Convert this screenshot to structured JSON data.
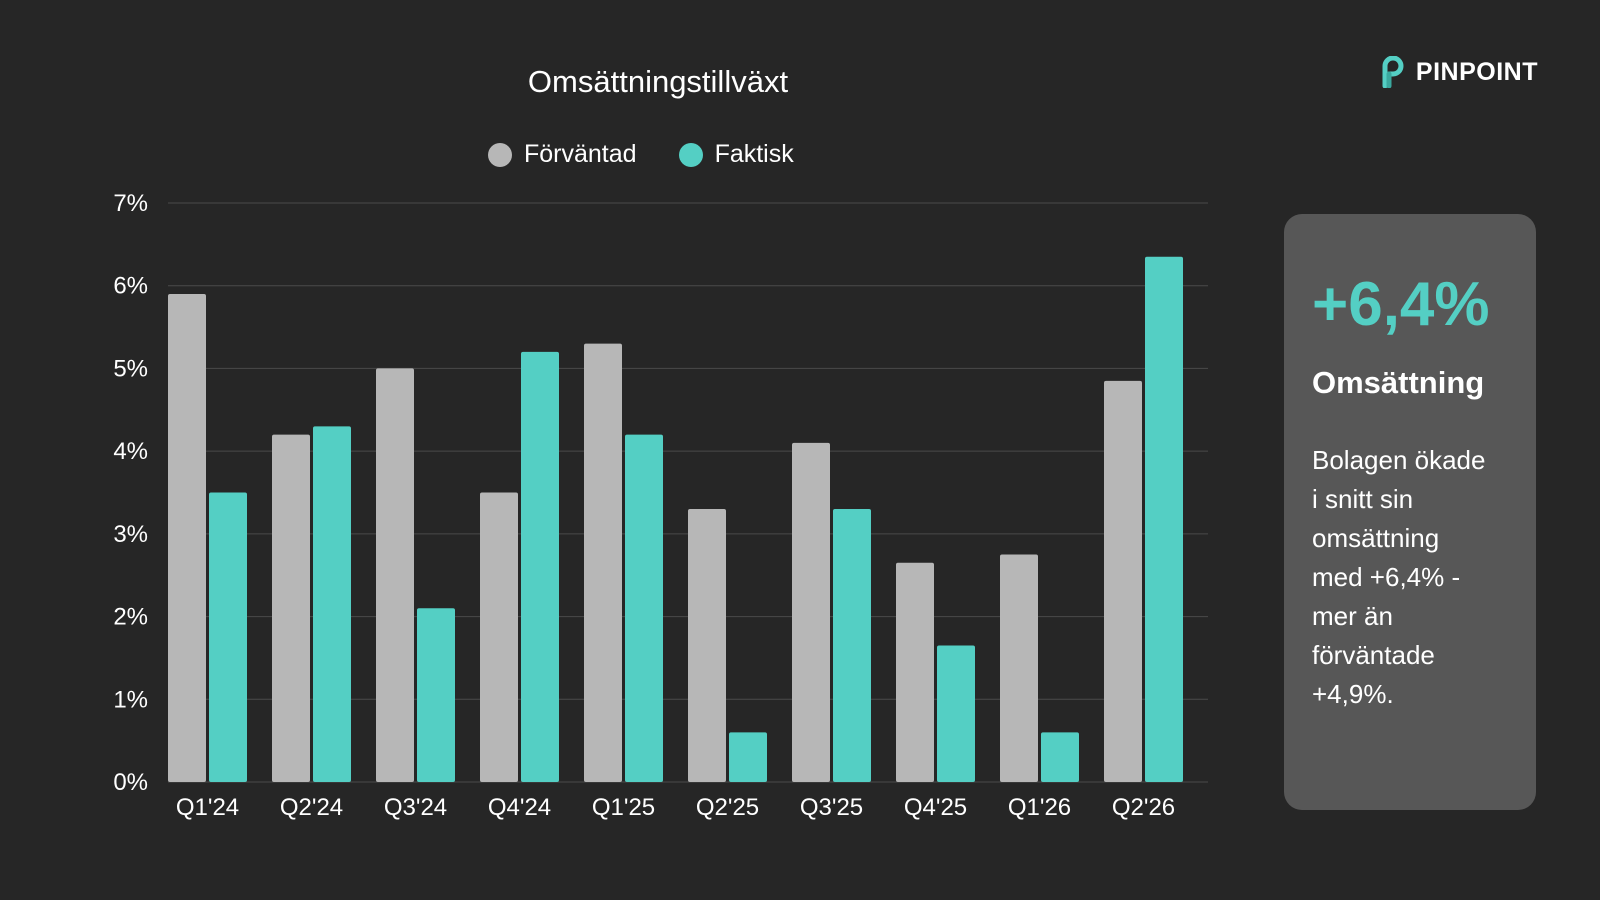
{
  "brand": {
    "name": "PINPOINT",
    "logo_icon": "pinpoint-logo-icon",
    "accent": "#54cfc4"
  },
  "chart_data": {
    "type": "bar",
    "title": "Omsättningstillväxt",
    "xlabel": "",
    "ylabel": "",
    "categories": [
      "Q1'24",
      "Q2'24",
      "Q3'24",
      "Q4'24",
      "Q1'25",
      "Q2'25",
      "Q3'25",
      "Q4'25",
      "Q1'26",
      "Q2'26"
    ],
    "series": [
      {
        "name": "Förväntad",
        "color": "#b7b7b7",
        "values": [
          5.9,
          4.2,
          5.0,
          3.5,
          5.3,
          3.3,
          4.1,
          2.65,
          2.75,
          4.85
        ]
      },
      {
        "name": "Faktisk",
        "color": "#54cfc4",
        "values": [
          3.5,
          4.3,
          2.1,
          5.2,
          4.2,
          0.6,
          3.3,
          1.65,
          0.6,
          6.35
        ]
      }
    ],
    "ylim": [
      0,
      7
    ],
    "yticks": [
      "0%",
      "1%",
      "2%",
      "3%",
      "4%",
      "5%",
      "6%",
      "7%"
    ],
    "grid": true,
    "legend_position": "top-center"
  },
  "kpi": {
    "value": "+6,4%",
    "label": "Omsättning",
    "description": "Bolagen ökade\ni snitt sin\nomsättning\nmed +6,4% -\nmer än\nförväntade\n+4,9%."
  },
  "colors": {
    "background": "#262626",
    "card": "#575757",
    "gridline": "#4a4a4a"
  }
}
